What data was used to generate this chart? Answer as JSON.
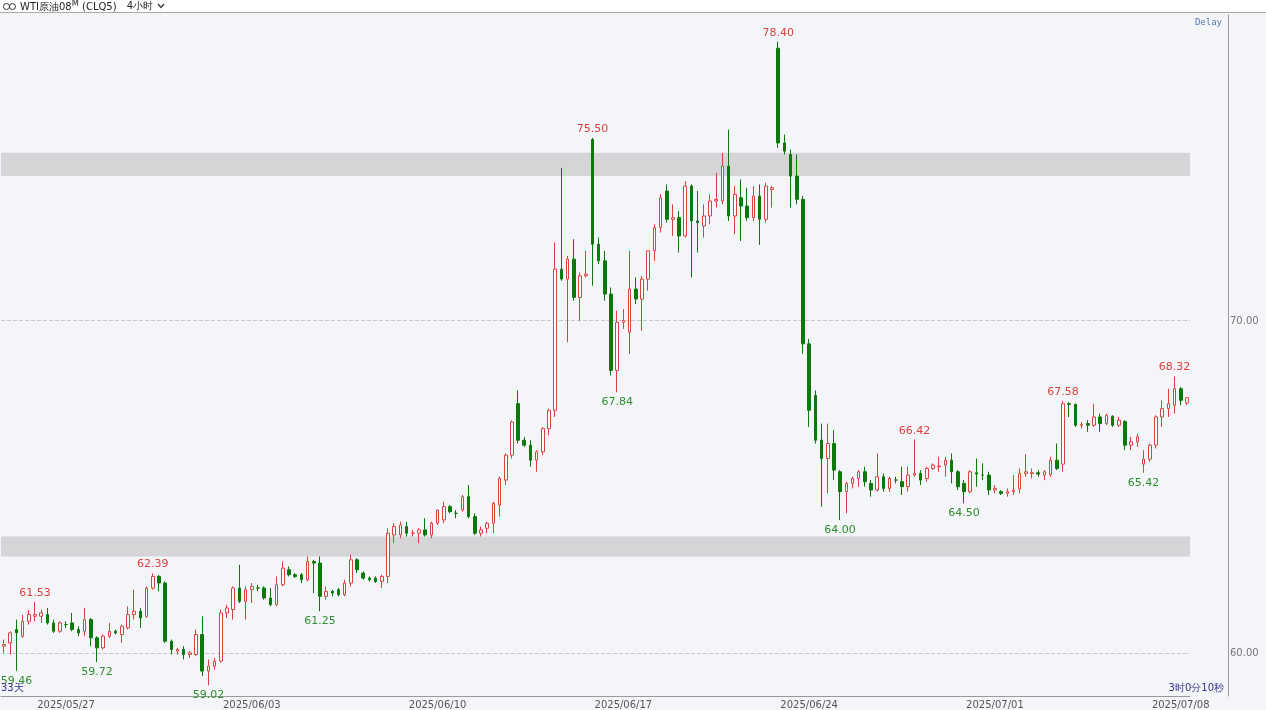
{
  "chart_data": {
    "type": "candlestick",
    "title": "WTI原油08$^{M}$ (CLQ5)",
    "subtitle": "4小时",
    "categories": [
      null,
      null,
      null,
      null,
      null,
      null,
      null,
      null,
      null,
      null,
      "2025/05/27",
      null,
      null,
      null,
      null,
      null,
      null,
      null,
      null,
      null,
      null,
      null,
      null,
      null,
      null,
      null,
      null,
      null,
      null,
      null,
      null,
      null,
      null,
      null,
      null,
      null,
      null,
      null,
      null,
      null,
      "2025/06/03",
      null,
      null,
      null,
      null,
      null,
      null,
      null,
      null,
      null,
      null,
      null,
      null,
      null,
      null,
      null,
      null,
      null,
      null,
      null,
      null,
      null,
      null,
      null,
      null,
      null,
      null,
      null,
      null,
      null,
      "2025/06/10",
      null,
      null,
      null,
      null,
      null,
      null,
      null,
      null,
      null,
      null,
      null,
      null,
      null,
      null,
      null,
      null,
      null,
      null,
      null,
      null,
      null,
      null,
      null,
      null,
      null,
      null,
      null,
      null,
      null,
      "2025/06/17",
      null,
      null,
      null,
      null,
      null,
      null,
      null,
      null,
      null,
      null,
      null,
      null,
      null,
      null,
      null,
      null,
      null,
      null,
      null,
      null,
      null,
      null,
      null,
      null,
      null,
      null,
      null,
      null,
      null,
      "2025/06/24",
      null,
      null,
      null,
      null,
      null,
      null,
      null,
      null,
      null,
      null,
      null,
      null,
      null,
      null,
      null,
      null,
      null,
      null,
      null,
      null,
      null,
      null,
      null,
      null,
      null,
      null,
      null,
      null,
      null,
      "2025/07/01",
      null,
      null,
      null,
      null,
      null,
      null,
      null,
      null,
      null,
      null,
      null,
      null,
      null,
      null,
      null,
      null,
      null,
      null,
      null,
      null,
      null,
      null,
      null,
      null,
      null,
      null,
      null,
      null,
      null,
      "2025/07/08",
      null
    ],
    "ohlc": [
      [
        60.2,
        60.4,
        60.0,
        60.25
      ],
      [
        60.3,
        60.65,
        59.95,
        60.6
      ],
      [
        60.7,
        61.0,
        59.46,
        60.6
      ],
      [
        60.5,
        61.15,
        60.45,
        60.95
      ],
      [
        60.95,
        61.3,
        60.85,
        61.15
      ],
      [
        61.1,
        61.53,
        60.95,
        61.15
      ],
      [
        61.1,
        61.3,
        60.9,
        61.2
      ],
      [
        61.15,
        61.35,
        60.85,
        60.9
      ],
      [
        60.9,
        61.0,
        60.6,
        60.65
      ],
      [
        60.65,
        60.95,
        60.6,
        60.9
      ],
      [
        60.85,
        60.95,
        60.75,
        60.85
      ],
      [
        60.9,
        61.2,
        60.65,
        60.7
      ],
      [
        60.7,
        60.8,
        60.5,
        60.6
      ],
      [
        60.65,
        61.35,
        60.5,
        61.0
      ],
      [
        61.0,
        61.05,
        60.2,
        60.45
      ],
      [
        60.45,
        60.5,
        59.72,
        60.15
      ],
      [
        60.15,
        60.55,
        60.1,
        60.5
      ],
      [
        60.5,
        60.9,
        60.45,
        60.65
      ],
      [
        60.65,
        60.7,
        60.55,
        60.6
      ],
      [
        60.55,
        60.85,
        60.3,
        60.8
      ],
      [
        60.75,
        61.4,
        60.7,
        61.15
      ],
      [
        61.15,
        61.9,
        61.0,
        61.25
      ],
      [
        61.25,
        61.35,
        60.75,
        61.05
      ],
      [
        61.1,
        62.0,
        61.05,
        61.95
      ],
      [
        61.95,
        62.39,
        61.9,
        62.3
      ],
      [
        62.3,
        62.35,
        61.85,
        62.1
      ],
      [
        62.1,
        62.15,
        60.3,
        60.35
      ],
      [
        60.35,
        60.4,
        59.95,
        60.1
      ],
      [
        60.05,
        60.15,
        59.95,
        60.1
      ],
      [
        60.1,
        60.2,
        59.8,
        59.95
      ],
      [
        59.95,
        60.05,
        59.85,
        60.0
      ],
      [
        59.95,
        60.7,
        59.9,
        60.55
      ],
      [
        60.55,
        61.1,
        59.3,
        59.45
      ],
      [
        59.45,
        59.8,
        59.02,
        59.6
      ],
      [
        59.6,
        59.85,
        59.5,
        59.75
      ],
      [
        59.75,
        61.3,
        59.7,
        61.2
      ],
      [
        61.2,
        61.45,
        61.05,
        61.35
      ],
      [
        61.3,
        62.0,
        61.0,
        61.95
      ],
      [
        61.95,
        62.65,
        61.5,
        61.55
      ],
      [
        61.55,
        62.0,
        61.0,
        61.9
      ],
      [
        61.9,
        62.1,
        61.5,
        62.0
      ],
      [
        61.95,
        62.05,
        61.85,
        61.95
      ],
      [
        61.95,
        62.0,
        61.6,
        61.65
      ],
      [
        61.65,
        61.95,
        61.4,
        61.45
      ],
      [
        61.45,
        62.3,
        61.4,
        62.05
      ],
      [
        62.05,
        62.75,
        62.0,
        62.55
      ],
      [
        62.5,
        62.6,
        62.3,
        62.35
      ],
      [
        62.35,
        62.4,
        62.25,
        62.3
      ],
      [
        62.35,
        62.4,
        62.1,
        62.2
      ],
      [
        62.2,
        62.9,
        62.15,
        62.75
      ],
      [
        62.75,
        62.8,
        61.8,
        62.7
      ],
      [
        62.7,
        62.9,
        61.25,
        61.7
      ],
      [
        61.7,
        62.0,
        61.6,
        61.85
      ],
      [
        61.85,
        61.9,
        61.7,
        61.8
      ],
      [
        61.9,
        61.95,
        61.7,
        61.75
      ],
      [
        61.75,
        62.2,
        61.7,
        62.1
      ],
      [
        62.1,
        62.95,
        62.0,
        62.8
      ],
      [
        62.8,
        62.85,
        62.4,
        62.5
      ],
      [
        62.4,
        62.45,
        62.2,
        62.25
      ],
      [
        62.25,
        62.3,
        62.15,
        62.2
      ],
      [
        62.25,
        62.3,
        62.1,
        62.15
      ],
      [
        62.15,
        62.35,
        61.95,
        62.3
      ],
      [
        62.3,
        63.75,
        62.1,
        63.6
      ],
      [
        63.55,
        63.9,
        63.3,
        63.8
      ],
      [
        63.55,
        63.95,
        63.45,
        63.85
      ],
      [
        63.8,
        63.95,
        63.5,
        63.6
      ],
      [
        63.6,
        63.7,
        63.5,
        63.6
      ],
      [
        63.6,
        63.75,
        63.3,
        63.7
      ],
      [
        63.7,
        64.05,
        63.5,
        63.55
      ],
      [
        63.55,
        63.95,
        63.45,
        63.9
      ],
      [
        63.9,
        64.3,
        63.85,
        64.3
      ],
      [
        64.0,
        64.55,
        63.9,
        64.4
      ],
      [
        64.4,
        64.45,
        64.2,
        64.25
      ],
      [
        64.2,
        64.3,
        64.05,
        64.2
      ],
      [
        64.3,
        64.75,
        64.25,
        64.7
      ],
      [
        64.7,
        65.05,
        64.05,
        64.1
      ],
      [
        64.1,
        64.2,
        63.55,
        63.6
      ],
      [
        63.6,
        63.8,
        63.5,
        63.7
      ],
      [
        63.75,
        63.95,
        63.6,
        63.9
      ],
      [
        63.9,
        64.55,
        63.6,
        64.5
      ],
      [
        64.45,
        65.3,
        64.1,
        65.25
      ],
      [
        65.2,
        66.0,
        65.05,
        65.95
      ],
      [
        65.95,
        67.0,
        65.85,
        66.95
      ],
      [
        67.5,
        67.9,
        66.3,
        66.4
      ],
      [
        66.4,
        66.5,
        66.2,
        66.25
      ],
      [
        66.25,
        66.4,
        65.6,
        65.8
      ],
      [
        65.8,
        66.1,
        65.45,
        66.05
      ],
      [
        66.05,
        66.8,
        65.95,
        66.75
      ],
      [
        66.75,
        67.35,
        66.55,
        67.3
      ],
      [
        67.3,
        72.35,
        67.1,
        71.55
      ],
      [
        71.55,
        74.6,
        71.2,
        71.25
      ],
      [
        71.25,
        71.95,
        69.35,
        71.85
      ],
      [
        71.85,
        72.45,
        70.6,
        70.7
      ],
      [
        70.7,
        71.45,
        70.0,
        71.35
      ],
      [
        71.35,
        72.1,
        71.3,
        71.4
      ],
      [
        75.45,
        75.5,
        71.05,
        72.3
      ],
      [
        72.3,
        72.5,
        71.7,
        71.8
      ],
      [
        71.8,
        72.1,
        70.6,
        70.8
      ],
      [
        70.8,
        71.0,
        68.35,
        68.5
      ],
      [
        68.5,
        70.3,
        67.84,
        69.95
      ],
      [
        69.95,
        70.35,
        69.75,
        70.0
      ],
      [
        69.65,
        72.1,
        69.0,
        70.95
      ],
      [
        70.95,
        71.3,
        70.5,
        70.65
      ],
      [
        70.65,
        71.35,
        69.7,
        71.25
      ],
      [
        71.25,
        72.1,
        70.9,
        72.1
      ],
      [
        72.1,
        72.9,
        71.8,
        72.8
      ],
      [
        72.8,
        73.8,
        72.65,
        73.7
      ],
      [
        73.9,
        74.1,
        72.95,
        73.05
      ],
      [
        73.05,
        73.5,
        72.55,
        73.1
      ],
      [
        73.1,
        73.3,
        72.05,
        72.55
      ],
      [
        72.55,
        74.2,
        72.5,
        74.05
      ],
      [
        74.05,
        74.1,
        71.3,
        73.0
      ],
      [
        73.0,
        73.9,
        72.05,
        72.95
      ],
      [
        72.85,
        73.5,
        72.5,
        73.15
      ],
      [
        73.15,
        73.8,
        72.9,
        73.6
      ],
      [
        73.6,
        74.45,
        73.4,
        73.65
      ],
      [
        73.6,
        75.05,
        73.5,
        74.65
      ],
      [
        74.65,
        75.75,
        73.0,
        73.15
      ],
      [
        73.15,
        74.05,
        72.6,
        73.8
      ],
      [
        73.7,
        74.25,
        72.4,
        73.45
      ],
      [
        73.45,
        74.0,
        73.0,
        73.1
      ],
      [
        73.1,
        74.05,
        73.0,
        73.75
      ],
      [
        73.75,
        74.1,
        72.28,
        73.05
      ],
      [
        73.05,
        74.15,
        72.95,
        74.05
      ],
      [
        73.95,
        74.05,
        73.4,
        74.0
      ],
      [
        78.2,
        78.4,
        75.2,
        75.35
      ],
      [
        75.35,
        75.6,
        75.0,
        75.1
      ],
      [
        75.0,
        75.15,
        73.4,
        74.35
      ],
      [
        74.35,
        75.0,
        73.5,
        73.65
      ],
      [
        73.65,
        73.75,
        69.0,
        69.3
      ],
      [
        69.3,
        69.45,
        66.8,
        67.3
      ],
      [
        67.75,
        67.9,
        66.3,
        66.4
      ],
      [
        66.4,
        66.9,
        64.4,
        65.85
      ],
      [
        65.85,
        66.9,
        64.8,
        66.3
      ],
      [
        66.3,
        66.7,
        65.2,
        65.5
      ],
      [
        65.45,
        65.5,
        64.0,
        64.85
      ],
      [
        64.85,
        65.15,
        64.2,
        65.1
      ],
      [
        65.1,
        65.3,
        64.95,
        65.25
      ],
      [
        65.25,
        65.5,
        65.0,
        65.45
      ],
      [
        65.45,
        65.6,
        65.0,
        65.15
      ],
      [
        65.1,
        65.2,
        64.7,
        64.9
      ],
      [
        64.9,
        66.0,
        64.85,
        65.3
      ],
      [
        65.3,
        65.4,
        64.85,
        64.95
      ],
      [
        64.95,
        65.3,
        64.85,
        65.25
      ],
      [
        65.2,
        65.3,
        65.1,
        65.2
      ],
      [
        65.15,
        65.6,
        64.75,
        65.0
      ],
      [
        65.0,
        65.6,
        64.85,
        65.35
      ],
      [
        65.35,
        66.42,
        65.3,
        65.4
      ],
      [
        65.4,
        65.5,
        65.05,
        65.2
      ],
      [
        65.25,
        65.6,
        65.15,
        65.55
      ],
      [
        65.55,
        65.7,
        65.5,
        65.65
      ],
      [
        65.6,
        65.9,
        65.45,
        65.62
      ],
      [
        65.65,
        65.9,
        65.3,
        65.8
      ],
      [
        65.8,
        66.0,
        65.1,
        65.45
      ],
      [
        65.45,
        65.5,
        64.9,
        65.0
      ],
      [
        65.1,
        65.2,
        64.5,
        64.85
      ],
      [
        64.85,
        65.5,
        64.8,
        65.45
      ],
      [
        65.42,
        65.85,
        65.0,
        65.38
      ],
      [
        65.35,
        65.7,
        65.2,
        65.35
      ],
      [
        65.35,
        65.45,
        64.75,
        64.9
      ],
      [
        64.9,
        65.05,
        64.8,
        64.95
      ],
      [
        64.85,
        64.9,
        64.75,
        64.8
      ],
      [
        64.8,
        64.95,
        64.7,
        64.85
      ],
      [
        64.85,
        65.35,
        64.75,
        64.9
      ],
      [
        64.93,
        65.55,
        64.8,
        65.4
      ],
      [
        65.4,
        65.98,
        65.3,
        65.45
      ],
      [
        65.4,
        65.55,
        65.25,
        65.42
      ],
      [
        65.42,
        65.5,
        65.3,
        65.38
      ],
      [
        65.35,
        65.5,
        65.2,
        65.45
      ],
      [
        65.37,
        65.9,
        65.3,
        65.8
      ],
      [
        65.8,
        66.3,
        65.5,
        65.55
      ],
      [
        65.68,
        67.58,
        65.45,
        67.5
      ],
      [
        67.5,
        67.55,
        67.1,
        67.48
      ],
      [
        67.48,
        67.5,
        66.8,
        66.85
      ],
      [
        66.85,
        66.95,
        66.75,
        66.87
      ],
      [
        66.9,
        67.0,
        66.65,
        66.85
      ],
      [
        66.85,
        67.5,
        66.8,
        67.1
      ],
      [
        67.1,
        67.2,
        66.65,
        66.9
      ],
      [
        66.9,
        67.2,
        66.85,
        67.15
      ],
      [
        67.12,
        67.15,
        66.8,
        66.85
      ],
      [
        66.85,
        67.1,
        66.8,
        67.0
      ],
      [
        66.96,
        67.0,
        66.1,
        66.25
      ],
      [
        66.25,
        66.5,
        66.1,
        66.35
      ],
      [
        66.35,
        66.6,
        66.2,
        66.5
      ],
      [
        65.68,
        66.1,
        65.42,
        65.83
      ],
      [
        65.83,
        66.3,
        65.75,
        66.25
      ],
      [
        66.25,
        67.15,
        66.15,
        67.1
      ],
      [
        67.1,
        67.6,
        66.8,
        67.35
      ],
      [
        67.35,
        67.95,
        67.1,
        67.5
      ],
      [
        67.45,
        68.32,
        67.2,
        67.95
      ],
      [
        67.95,
        68.0,
        67.45,
        67.6
      ],
      [
        67.52,
        67.7,
        67.45,
        67.68
      ]
    ],
    "ylim": [
      58.7,
      79.2
    ],
    "yticks": [
      {
        "value": 60,
        "label": "60.00"
      },
      {
        "value": 70,
        "label": "70.00"
      }
    ],
    "grid": "y",
    "bands": [
      {
        "axis": "y",
        "from": 62.9,
        "to": 63.5,
        "color": "#c0c0c0"
      },
      {
        "axis": "y",
        "from": 74.35,
        "to": 75.05,
        "color": "#c0c0c0"
      }
    ],
    "annotations": [
      {
        "text": "61.53",
        "y": 61.53
      },
      {
        "text": "59.46",
        "y": 59.46
      },
      {
        "text": "62.39",
        "y": 62.39
      },
      {
        "text": "59.72",
        "y": 59.72
      },
      {
        "text": "59.02",
        "y": 59.02
      },
      {
        "text": "61.25",
        "y": 61.25
      },
      {
        "text": "75.50",
        "y": 75.5
      },
      {
        "text": "67.84",
        "y": 67.84
      },
      {
        "text": "78.40",
        "y": 78.4
      },
      {
        "text": "64.00",
        "y": 64.0
      },
      {
        "text": "66.42",
        "y": 66.42
      },
      {
        "text": "64.50",
        "y": 64.5
      },
      {
        "text": "67.58",
        "y": 67.58
      },
      {
        "text": "65.42",
        "y": 65.42
      },
      {
        "text": "68.32",
        "y": 68.32
      },
      "Delay",
      "33天",
      "3时0分10秒"
    ]
  }
}
